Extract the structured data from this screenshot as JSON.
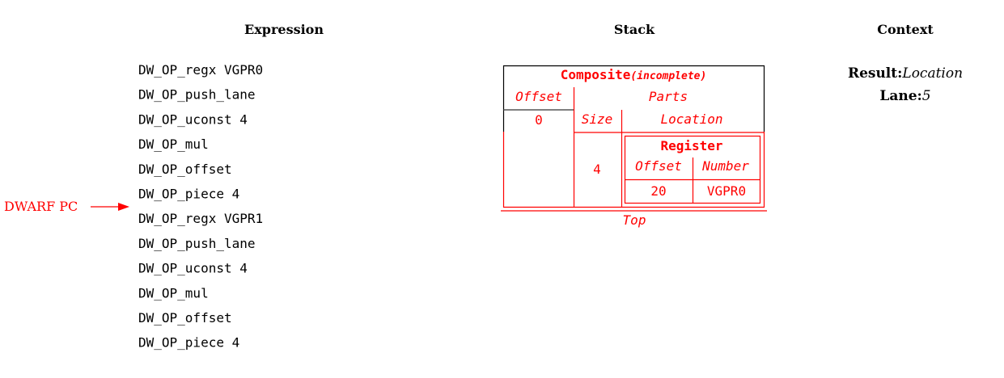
{
  "headers": {
    "expression": "Expression",
    "stack": "Stack",
    "context": "Context"
  },
  "expression": [
    "DW_OP_regx VGPR0",
    "DW_OP_push_lane",
    "DW_OP_uconst 4",
    "DW_OP_mul",
    "DW_OP_offset",
    "DW_OP_piece 4",
    "DW_OP_regx VGPR1",
    "DW_OP_push_lane",
    "DW_OP_uconst 4",
    "DW_OP_mul",
    "DW_OP_offset",
    "DW_OP_piece 4"
  ],
  "pc": {
    "label": "DWARF PC",
    "color": "#ff0000"
  },
  "stack": {
    "composite_title": "Composite",
    "composite_note": "(incomplete)",
    "offset_header": "Offset",
    "parts_header": "Parts",
    "offset_value": "0",
    "size_header": "Size",
    "location_header": "Location",
    "size_value": "4",
    "register": {
      "title": "Register",
      "offset_header": "Offset",
      "number_header": "Number",
      "offset_value": "20",
      "number_value": "VGPR0"
    },
    "top_label": "Top"
  },
  "context": {
    "result_label": "Result:",
    "result_value": "Location",
    "lane_label": "Lane:",
    "lane_value": "5"
  }
}
